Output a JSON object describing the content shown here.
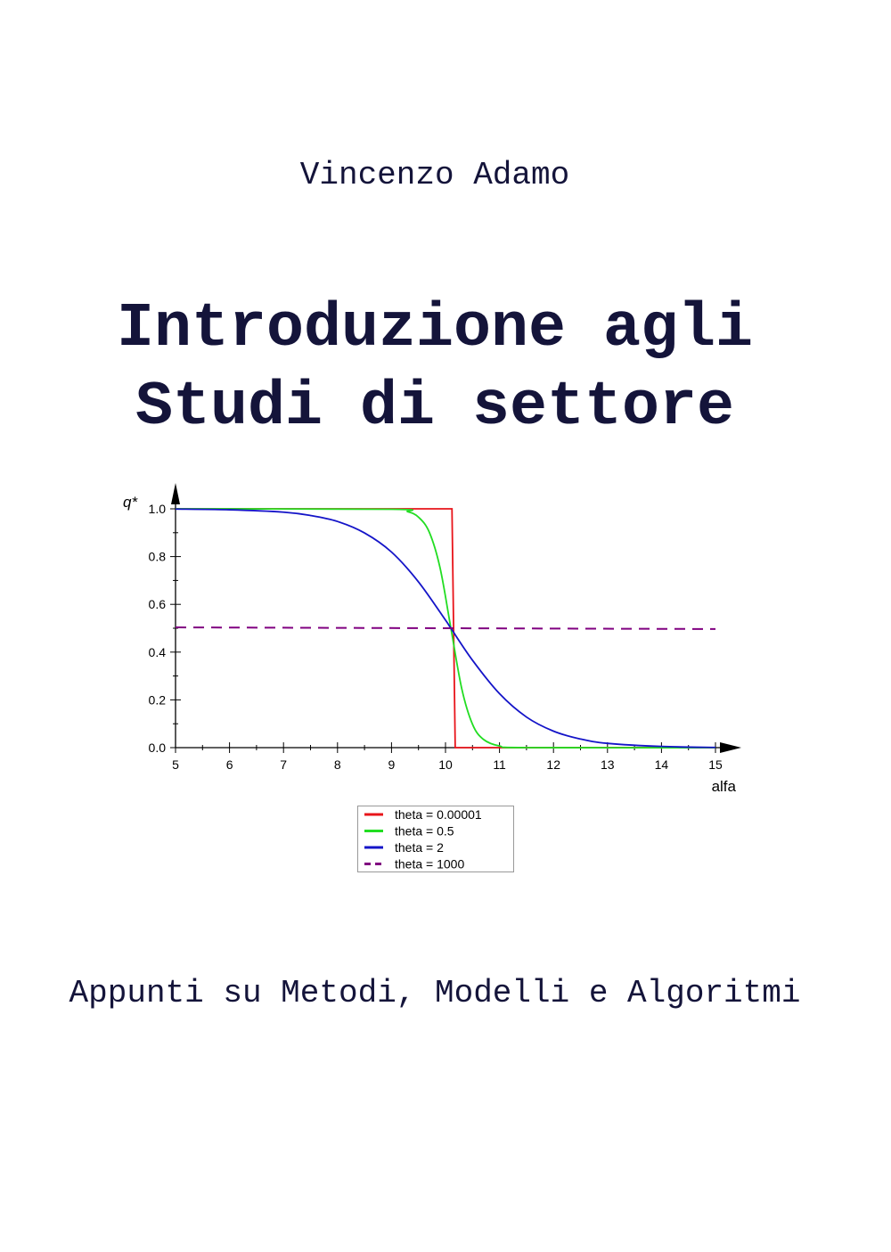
{
  "cover": {
    "author": "Vincenzo Adamo",
    "title_line1": "Introduzione agli",
    "title_line2": "Studi di settore",
    "subtitle": "Appunti su Metodi, Modelli e Algoritmi"
  },
  "chart_data": {
    "type": "line",
    "xlabel": "alfa",
    "ylabel": "q*",
    "xlim": [
      5,
      15
    ],
    "ylim": [
      0,
      1
    ],
    "xticks": [
      "5",
      "6",
      "7",
      "8",
      "9",
      "10",
      "11",
      "12",
      "13",
      "14",
      "15"
    ],
    "yticks": [
      "0.0",
      "0.2",
      "0.4",
      "0.6",
      "0.8",
      "1.0"
    ],
    "grid": false,
    "legend_placement": "bottom-center",
    "series": [
      {
        "name": "theta = 0.00001",
        "color": "#e8141a",
        "dash": false,
        "points": [
          [
            5,
            1
          ],
          [
            10.12,
            1
          ],
          [
            10.18,
            0
          ],
          [
            15,
            0
          ]
        ]
      },
      {
        "name": "theta = 0.5",
        "color": "#22dd22",
        "dash": false,
        "points": [
          [
            5,
            1
          ],
          [
            9,
            0.998
          ],
          [
            9.3,
            0.988
          ],
          [
            9.5,
            0.965
          ],
          [
            9.7,
            0.902
          ],
          [
            9.9,
            0.752
          ],
          [
            10.1,
            0.5
          ],
          [
            10.3,
            0.248
          ],
          [
            10.5,
            0.098
          ],
          [
            10.7,
            0.035
          ],
          [
            11,
            0.007
          ],
          [
            11.5,
            0.0
          ],
          [
            15,
            0
          ]
        ]
      },
      {
        "name": "theta = 2",
        "color": "#1414c8",
        "dash": false,
        "points": [
          [
            5,
            0.999
          ],
          [
            6,
            0.996
          ],
          [
            7,
            0.986
          ],
          [
            7.5,
            0.972
          ],
          [
            8,
            0.947
          ],
          [
            8.5,
            0.899
          ],
          [
            9,
            0.819
          ],
          [
            9.5,
            0.694
          ],
          [
            10,
            0.534
          ],
          [
            10.1,
            0.5
          ],
          [
            10.5,
            0.366
          ],
          [
            11,
            0.226
          ],
          [
            11.5,
            0.128
          ],
          [
            12,
            0.069
          ],
          [
            12.5,
            0.036
          ],
          [
            13,
            0.018
          ],
          [
            14,
            0.005
          ],
          [
            15,
            0.001
          ]
        ]
      },
      {
        "name": "theta = 1000",
        "color": "#800080",
        "dash": true,
        "points": [
          [
            5,
            0.5035
          ],
          [
            15,
            0.4966
          ]
        ]
      }
    ]
  }
}
